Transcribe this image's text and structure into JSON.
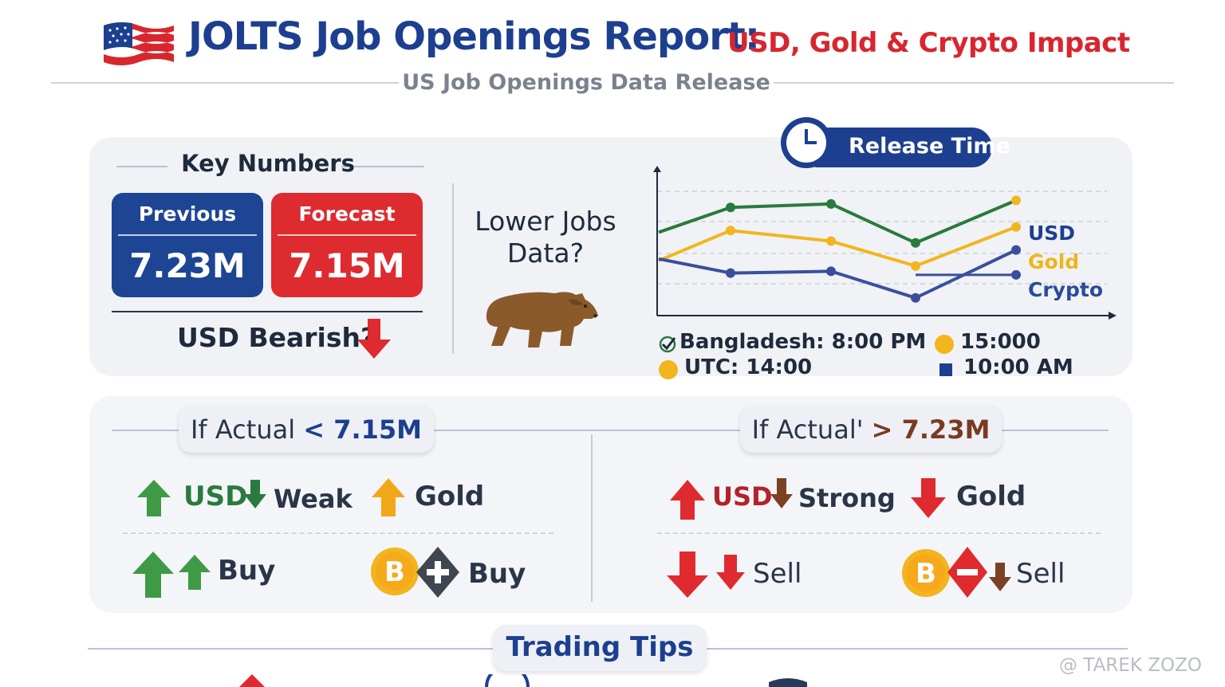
{
  "header": {
    "title_main": "JOLTS Job Openings Report",
    "title_colon": ":",
    "title_sub": "USD, Gold & Crypto Impact",
    "subtitle": "US Job Openings Data Release"
  },
  "key_numbers": {
    "title": "Key Numbers",
    "previous": {
      "label": "Previous",
      "value": "7.23M"
    },
    "forecast": {
      "label": "Forecast",
      "value": "7.15M"
    },
    "bearish_text": "USD Bearish?"
  },
  "lower_jobs": {
    "line1": "Lower Jobs",
    "line2": "Data?"
  },
  "release": {
    "pill_label": "Release Time",
    "legend": {
      "usd": "USD",
      "gold": "Gold",
      "crypto": "Crypto"
    },
    "info": {
      "bangladesh": "Bangladesh: 8:00 PM",
      "time1": "15:000",
      "utc": "UTC:  14:00",
      "time2": "10:00 AM"
    },
    "colors": {
      "usd": "#2a7a3e",
      "gold": "#f2b51d",
      "crypto": "#3a4f9c"
    }
  },
  "chart_data": {
    "type": "line",
    "title": "",
    "xlabel": "",
    "ylabel": "",
    "x": [
      0,
      1,
      2,
      3,
      4
    ],
    "series": [
      {
        "name": "USD",
        "values": [
          6.2,
          7.6,
          7.8,
          5.6,
          8.0
        ]
      },
      {
        "name": "Gold",
        "values": [
          4.6,
          6.3,
          5.7,
          4.3,
          6.5
        ]
      },
      {
        "name": "Crypto",
        "values": [
          4.7,
          3.9,
          4.0,
          2.5,
          5.2
        ]
      }
    ],
    "crypto_tail_value": 3.8,
    "ylim": [
      1.5,
      9.5
    ],
    "grid": true
  },
  "scenarios": {
    "left": {
      "prefix": "If Actual ",
      "condition": "< 7.15M",
      "row1": {
        "usd": "USD",
        "weak": "Weak",
        "gold": "Gold"
      },
      "row2": {
        "buy1": "Buy",
        "buy2": "Buy"
      }
    },
    "right": {
      "prefix": "If Actual' ",
      "condition": "> 7.23M",
      "row1": {
        "usd": "USD",
        "strong": "Strong",
        "gold": "Gold"
      },
      "row2": {
        "sell1": "Sell",
        "sell2": "Sell"
      }
    },
    "colors": {
      "green": "#3f9a45",
      "red": "#df2a2f",
      "amber": "#f0a81a",
      "brown": "#7a4222"
    }
  },
  "tips": {
    "title": "Trading Tips"
  },
  "watermark": "@ TAREK ZOZO"
}
